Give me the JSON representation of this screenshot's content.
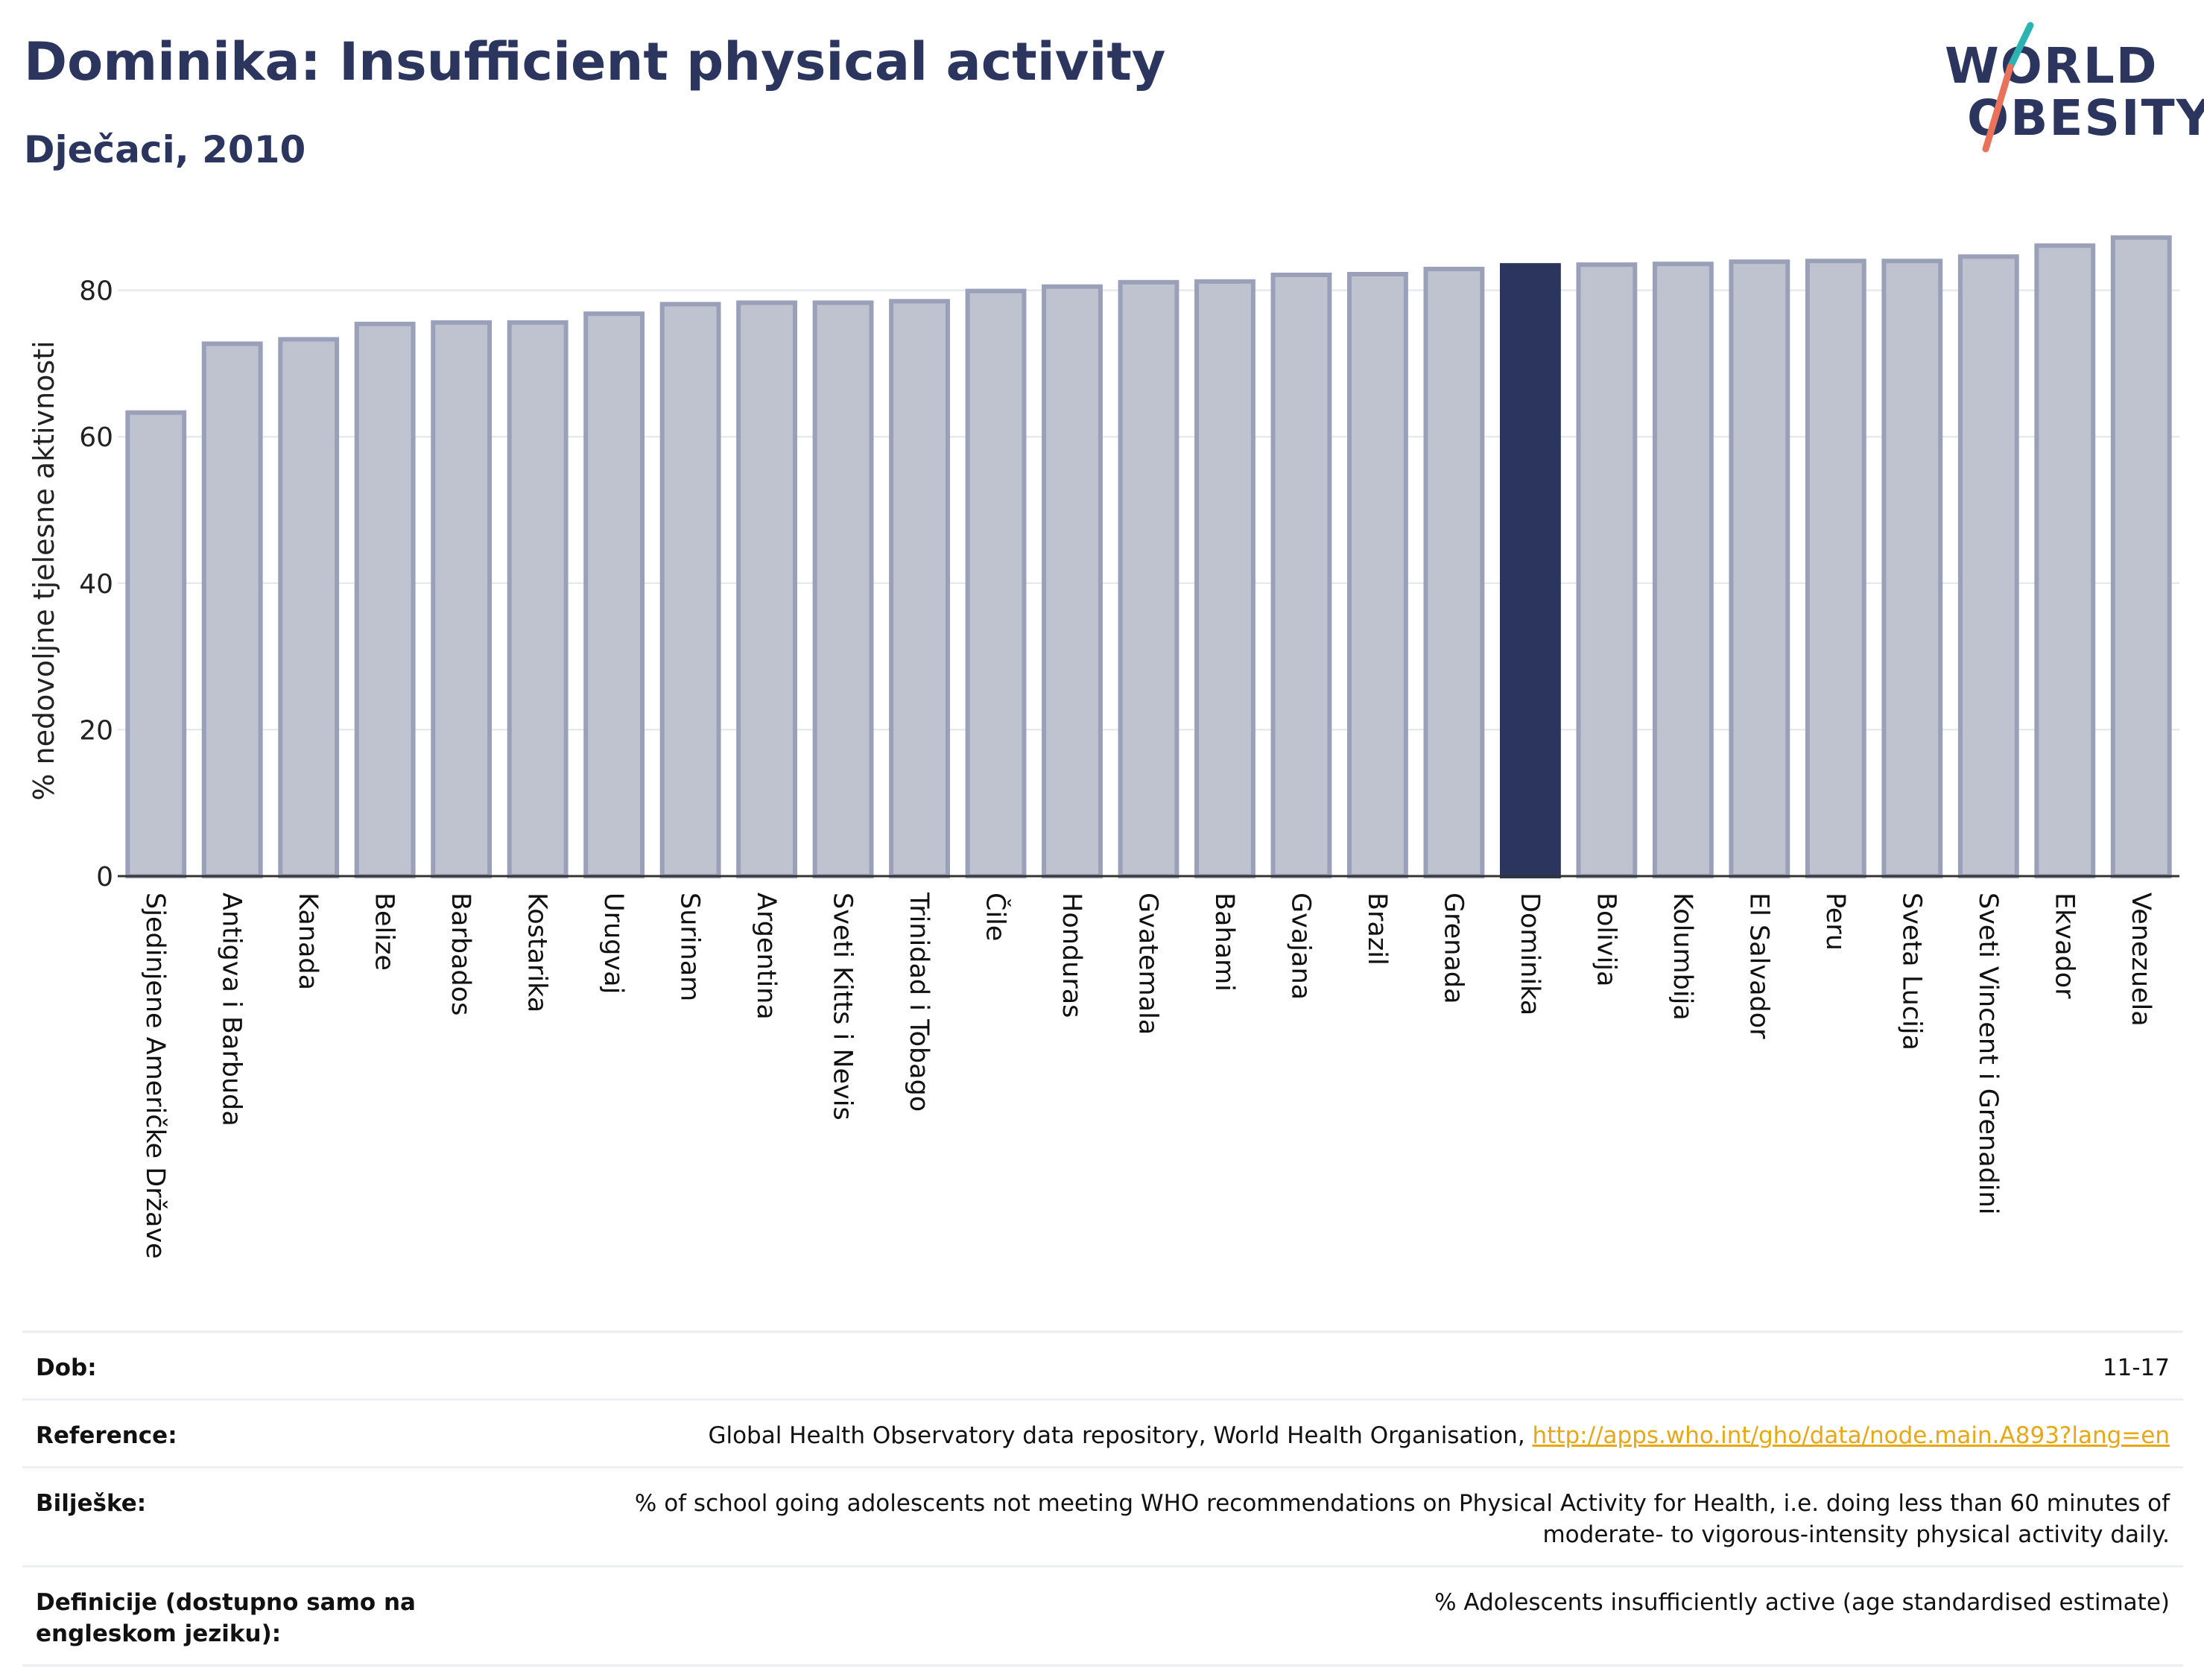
{
  "title": "Dominika: Insufficient physical activity",
  "subtitle": "Dječaci, 2010",
  "logo": {
    "line1": "WORLD",
    "line2": "OBESITY"
  },
  "colors": {
    "bar": "#bfc3d0",
    "bar_border": "#9aa0b8",
    "highlight": "#2b355e",
    "title": "#2b355e",
    "link": "#e6a817"
  },
  "chart_data": {
    "type": "bar",
    "ylabel": "% nedovoljne tjelesne aktivnosti",
    "ylim": [
      0,
      90
    ],
    "yticks": [
      0,
      20,
      40,
      60,
      80
    ],
    "grid": true,
    "highlight": "Dominika",
    "categories": [
      "Sjedinjene Američke Države",
      "Antigva i Barbuda",
      "Kanada",
      "Belize",
      "Barbados",
      "Kostarika",
      "Urugvaj",
      "Surinam",
      "Argentina",
      "Sveti Kitts i Nevis",
      "Trinidad i Tobago",
      "Čile",
      "Honduras",
      "Gvatemala",
      "Bahami",
      "Gvajana",
      "Brazil",
      "Grenada",
      "Dominika",
      "Bolivija",
      "Kolumbija",
      "El Salvador",
      "Peru",
      "Sveta Lucija",
      "Sveti Vincent i Grenadini",
      "Ekvador",
      "Venezuela"
    ],
    "values": [
      63.3,
      72.7,
      73.3,
      75.4,
      75.6,
      75.6,
      76.8,
      78.1,
      78.3,
      78.3,
      78.5,
      79.9,
      80.5,
      81.1,
      81.2,
      82.1,
      82.2,
      82.9,
      83.4,
      83.5,
      83.6,
      83.9,
      84.0,
      84.0,
      84.6,
      86.1,
      87.2
    ]
  },
  "info": {
    "age": {
      "label": "Dob:",
      "value": "11-17"
    },
    "reference": {
      "label": "Reference:",
      "text": "Global Health Observatory data repository, World Health Organisation,",
      "link": "http://apps.who.int/gho/data/node.main.A893?lang=en"
    },
    "notes": {
      "label": "Bilješke:",
      "line1": "% of school going adolescents not meeting WHO recommendations on Physical Activity for Health, i.e. doing less than 60 minutes of",
      "line2": "moderate- to vigorous-intensity physical activity daily."
    },
    "definitions": {
      "label": "Definicije (dostupno samo na engleskom jeziku):",
      "value": "% Adolescents insufficiently active (age standardised estimate)"
    }
  }
}
